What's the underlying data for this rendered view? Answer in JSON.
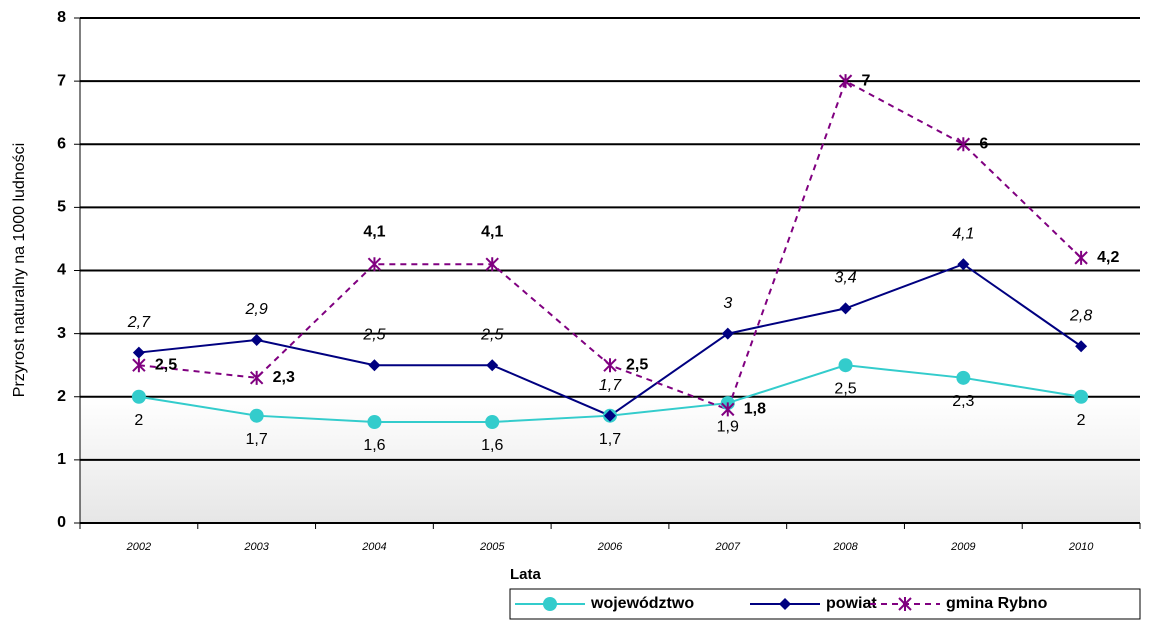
{
  "chart_data": {
    "type": "line",
    "y_label": "Przyrost naturalny na 1000 ludności",
    "x_label": "Lata",
    "categories": [
      "2002",
      "2003",
      "2004",
      "2005",
      "2006",
      "2007",
      "2008",
      "2009",
      "2010"
    ],
    "series": [
      {
        "name": "województwo",
        "color": "#33cccc",
        "marker": "circle",
        "dash": false,
        "values": [
          2,
          1.7,
          1.6,
          1.6,
          1.7,
          1.9,
          2.5,
          2.3,
          2
        ],
        "value_labels": [
          "2",
          "1,7",
          "1,6",
          "1,6",
          "1,7",
          "1,9",
          "2,5",
          "2,3",
          "2"
        ]
      },
      {
        "name": "powiat",
        "color": "#000080",
        "marker": "diamond",
        "dash": false,
        "values": [
          2.7,
          2.9,
          2.5,
          2.5,
          1.7,
          3,
          3.4,
          4.1,
          2.8
        ],
        "value_labels": [
          "2,7",
          "2,9",
          "2,5",
          "2,5",
          "1,7",
          "3",
          "3,4",
          "4,1",
          "2,8"
        ]
      },
      {
        "name": "gmina Rybno",
        "color": "#800080",
        "marker": "star",
        "dash": true,
        "values": [
          2.5,
          2.3,
          4.1,
          4.1,
          2.5,
          1.8,
          7,
          6,
          4.2
        ],
        "value_labels": [
          "2,5",
          "2,3",
          "4,1",
          "4,1",
          "2,5",
          "1,8",
          "7",
          "6",
          "4,2"
        ]
      }
    ],
    "ylim": [
      0,
      8
    ],
    "yticks": [
      0,
      1,
      2,
      3,
      4,
      5,
      6,
      7,
      8
    ],
    "grid": true,
    "legend": "bottom"
  }
}
